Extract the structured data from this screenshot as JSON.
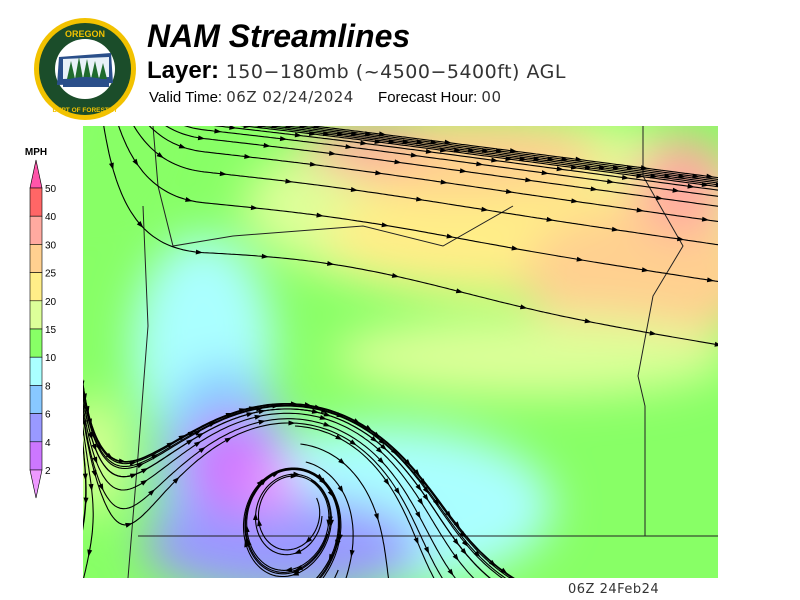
{
  "header": {
    "title": "NAM Streamlines",
    "layer_label": "Layer:",
    "layer_value": "150−180mb (~4500−5400ft) AGL",
    "valid_label": "Valid Time:",
    "valid_value": "06Z 02/24/2024",
    "forecast_label": "Forecast Hour:",
    "forecast_value": "00"
  },
  "logo": {
    "top_text": "OREGON",
    "ring_text": "DEPARTMENT OF FORESTRY"
  },
  "colorbar": {
    "unit": "MPH",
    "ticks": [
      "50",
      "40",
      "30",
      "25",
      "20",
      "15",
      "10",
      "8",
      "6",
      "4",
      "2"
    ],
    "colors": [
      "#ff6666",
      "#ffaaa0",
      "#ffd090",
      "#ffee88",
      "#ddff99",
      "#88ff66",
      "#aaffff",
      "#88c8ff",
      "#9999ff",
      "#cc77ff"
    ],
    "over_color": "#ff55aa",
    "under_color": "#ee99ff"
  },
  "footer": {
    "timestamp": "06Z 24Feb24"
  }
}
